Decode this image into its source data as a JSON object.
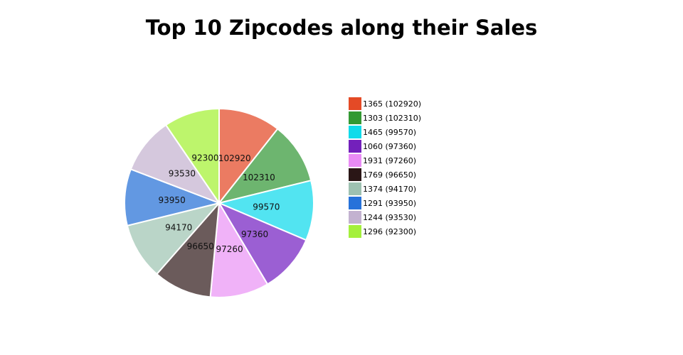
{
  "chart_data": {
    "type": "pie",
    "title": "Top 10 Zipcodes along their Sales",
    "slices": [
      {
        "label": "1365",
        "value": 102920,
        "slice_color": "#eb7b62",
        "legend_color": "#e44a26",
        "legend_text": "1365 (102920)"
      },
      {
        "label": "1303",
        "value": 102310,
        "slice_color": "#6db56f",
        "legend_color": "#339933",
        "legend_text": "1303 (102310)"
      },
      {
        "label": "1465",
        "value": 99570,
        "slice_color": "#52e4f1",
        "legend_color": "#10dbea",
        "legend_text": "1465 (99570)"
      },
      {
        "label": "1060",
        "value": 97360,
        "slice_color": "#9b5fd3",
        "legend_color": "#7320bb",
        "legend_text": "1060 (97360)"
      },
      {
        "label": "1931",
        "value": 97260,
        "slice_color": "#f0b2f8",
        "legend_color": "#e98bf5",
        "legend_text": "1931 (97260)"
      },
      {
        "label": "1769",
        "value": 96650,
        "slice_color": "#6b5b5b",
        "legend_color": "#2a1616",
        "legend_text": "1769 (96650)"
      },
      {
        "label": "1374",
        "value": 94170,
        "slice_color": "#bad5c8",
        "legend_color": "#9ec1b1",
        "legend_text": "1374 (94170)"
      },
      {
        "label": "1291",
        "value": 93950,
        "slice_color": "#6298e2",
        "legend_color": "#2672da",
        "legend_text": "1291 (93950)"
      },
      {
        "label": "1244",
        "value": 93530,
        "slice_color": "#d5c8dd",
        "legend_color": "#c3b2d0",
        "legend_text": "1244 (93530)"
      },
      {
        "label": "1296",
        "value": 92300,
        "slice_color": "#bdf56c",
        "legend_color": "#a4f03c",
        "legend_text": "1296 (92300)"
      }
    ],
    "legend_position": "right"
  }
}
